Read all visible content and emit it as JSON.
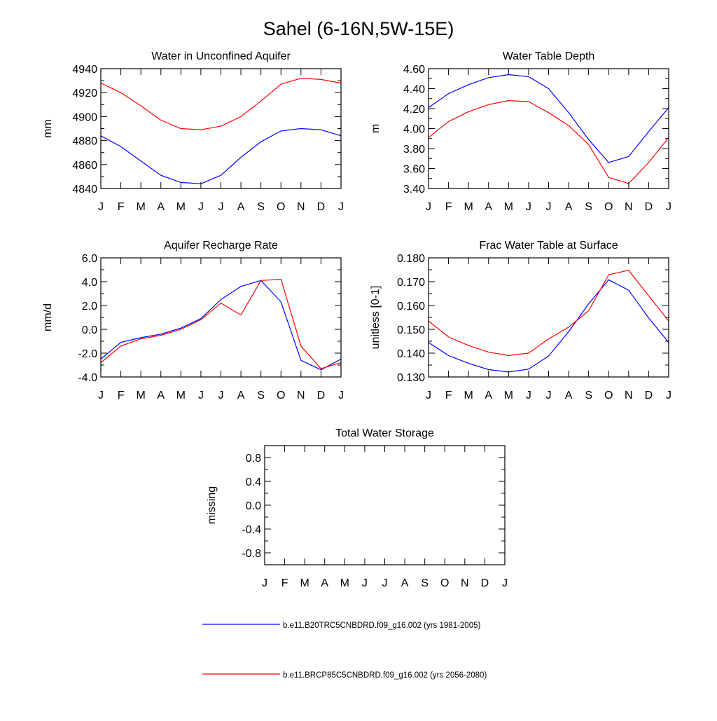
{
  "page": {
    "title": "Sahel (6-16N,5W-15E)"
  },
  "months": [
    "J",
    "F",
    "M",
    "A",
    "M",
    "J",
    "J",
    "A",
    "S",
    "O",
    "N",
    "D",
    "J"
  ],
  "legend": [
    {
      "label": "b.e11.B20TRC5CNBDRD.f09_g16.002 (yrs 1981-2005)",
      "color": "#0000ff"
    },
    {
      "label": "b.e11.BRCP85C5CNBDRD.f09_g16.002 (yrs 2056-2080)",
      "color": "#ff0000"
    }
  ],
  "chart_data": [
    {
      "type": "line",
      "title": "Water in Unconfined Aquifer",
      "ylabel": "mm",
      "ylim": [
        4840,
        4940
      ],
      "yticks": [
        "4840",
        "4860",
        "4880",
        "4900",
        "4920",
        "4940"
      ],
      "series": [
        {
          "color": "#0000ff",
          "values": [
            4884,
            4875,
            4863,
            4851,
            4845,
            4844,
            4851,
            4866,
            4879,
            4888,
            4890,
            4889,
            4884
          ]
        },
        {
          "color": "#ff0000",
          "values": [
            4928,
            4920,
            4909,
            4897,
            4890,
            4889,
            4892,
            4900,
            4913,
            4927,
            4932,
            4931,
            4928
          ]
        }
      ]
    },
    {
      "type": "line",
      "title": "Water Table Depth",
      "ylabel": "m",
      "ylim": [
        3.4,
        4.6
      ],
      "yticks": [
        "3.40",
        "3.60",
        "3.80",
        "4.00",
        "4.20",
        "4.40",
        "4.60"
      ],
      "series": [
        {
          "color": "#0000ff",
          "values": [
            4.21,
            4.35,
            4.44,
            4.51,
            4.54,
            4.52,
            4.4,
            4.16,
            3.89,
            3.66,
            3.72,
            3.97,
            4.21
          ]
        },
        {
          "color": "#ff0000",
          "values": [
            3.91,
            4.07,
            4.17,
            4.24,
            4.28,
            4.27,
            4.16,
            4.03,
            3.84,
            3.51,
            3.45,
            3.66,
            3.91
          ]
        }
      ]
    },
    {
      "type": "line",
      "title": "Aquifer Recharge Rate",
      "ylabel": "mm/d",
      "ylim": [
        -4.0,
        6.0
      ],
      "yticks": [
        "-4.0",
        "-2.0",
        "0.0",
        "2.0",
        "4.0",
        "6.0"
      ],
      "series": [
        {
          "color": "#0000ff",
          "values": [
            -2.5,
            -1.1,
            -0.7,
            -0.4,
            0.1,
            0.9,
            2.5,
            3.6,
            4.1,
            2.3,
            -2.6,
            -3.4,
            -2.5
          ]
        },
        {
          "color": "#ff0000",
          "values": [
            -2.8,
            -1.4,
            -0.8,
            -0.5,
            0.0,
            0.8,
            2.2,
            1.2,
            4.1,
            4.2,
            -1.4,
            -3.3,
            -2.8
          ]
        }
      ]
    },
    {
      "type": "line",
      "title": "Frac Water Table at Surface",
      "ylabel": "unitless [0-1]",
      "ylim": [
        0.13,
        0.18
      ],
      "yticks": [
        "0.130",
        "0.140",
        "0.150",
        "0.160",
        "0.170",
        "0.180"
      ],
      "series": [
        {
          "color": "#0000ff",
          "values": [
            0.1445,
            0.139,
            0.1357,
            0.1331,
            0.1321,
            0.1333,
            0.1388,
            0.149,
            0.1607,
            0.1708,
            0.1664,
            0.1548,
            0.1445
          ]
        },
        {
          "color": "#ff0000",
          "values": [
            0.1535,
            0.1468,
            0.1432,
            0.1404,
            0.139,
            0.14,
            0.146,
            0.1509,
            0.1578,
            0.1729,
            0.1748,
            0.1641,
            0.1535
          ]
        }
      ]
    },
    {
      "type": "line",
      "title": "Total Water Storage",
      "ylabel": "missing",
      "ylim": [
        -1.0,
        1.0
      ],
      "yticks": [
        "-0.8",
        "-0.4",
        "0.0",
        "0.4",
        "0.8"
      ],
      "series": []
    }
  ]
}
